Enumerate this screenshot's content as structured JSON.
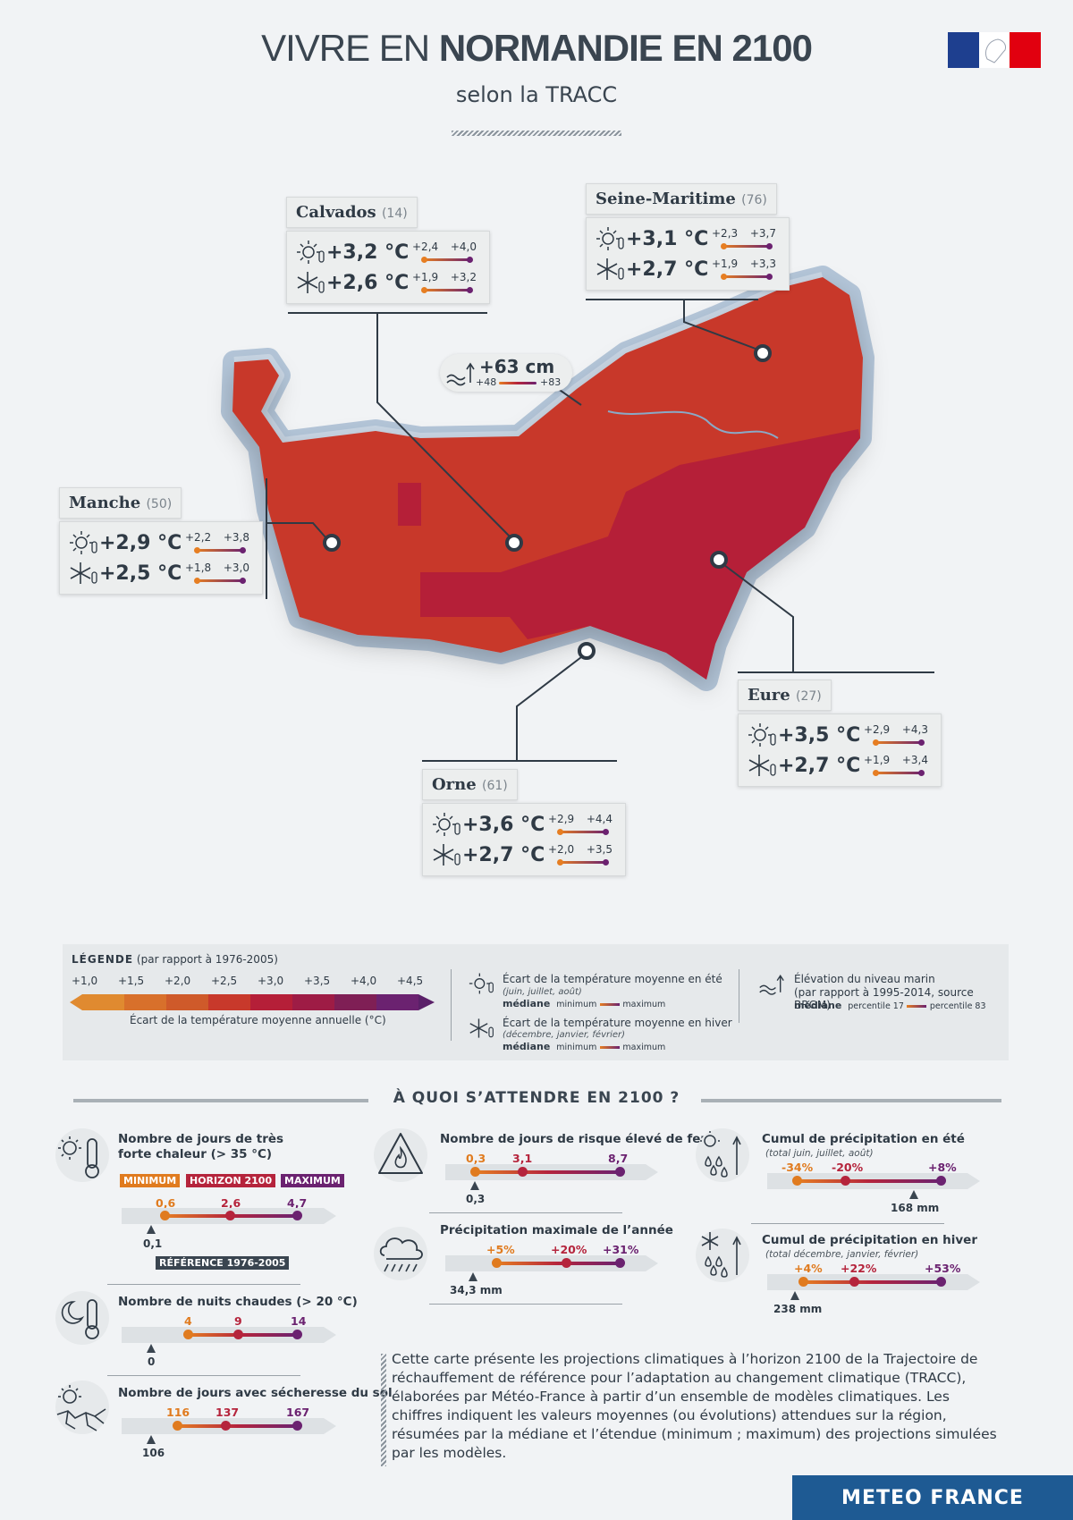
{
  "header": {
    "title_thin": "VIVRE EN",
    "title_bold": "NORMANDIE EN 2100",
    "subtitle": "selon la TRACC"
  },
  "colors": {
    "orange": "#e07b1f",
    "red": "#b5243c",
    "purple": "#6b2270",
    "map_light": "#c8392b",
    "map_dark": "#b51f38",
    "navy": "#1e5a93"
  },
  "departments": [
    {
      "name": "Calvados",
      "code": "(14)",
      "summer": "+3,2 °C",
      "summer_min": "+2,4",
      "summer_max": "+4,0",
      "winter": "+2,6 °C",
      "winter_min": "+1,9",
      "winter_max": "+3,2"
    },
    {
      "name": "Seine-Maritime",
      "code": "(76)",
      "summer": "+3,1 °C",
      "summer_min": "+2,3",
      "summer_max": "+3,7",
      "winter": "+2,7 °C",
      "winter_min": "+1,9",
      "winter_max": "+3,3"
    },
    {
      "name": "Manche",
      "code": "(50)",
      "summer": "+2,9 °C",
      "summer_min": "+2,2",
      "summer_max": "+3,8",
      "winter": "+2,5 °C",
      "winter_min": "+1,8",
      "winter_max": "+3,0"
    },
    {
      "name": "Eure",
      "code": "(27)",
      "summer": "+3,5 °C",
      "summer_min": "+2,9",
      "summer_max": "+4,3",
      "winter": "+2,7 °C",
      "winter_min": "+1,9",
      "winter_max": "+3,4"
    },
    {
      "name": "Orne",
      "code": "(61)",
      "summer": "+3,6 °C",
      "summer_min": "+2,9",
      "summer_max": "+4,4",
      "winter": "+2,7 °C",
      "winter_min": "+2,0",
      "winter_max": "+3,5"
    }
  ],
  "sea_level": {
    "value": "+63 cm",
    "min": "+48",
    "max": "+83"
  },
  "legend": {
    "title": "LÉGENDE",
    "title_note": "(par rapport à 1976-2005)",
    "scale": [
      "+1,0",
      "+1,5",
      "+2,0",
      "+2,5",
      "+3,0",
      "+3,5",
      "+4,0",
      "+4,5"
    ],
    "scale_caption": "Écart de la température moyenne annuelle (°C)",
    "summer_title": "Écart de la température moyenne en été",
    "summer_months": "(juin, juillet, août)",
    "winter_title": "Écart de la température moyenne en hiver",
    "winter_months": "(décembre, janvier, février)",
    "mediane": "médiane",
    "minimum": "minimum",
    "maximum": "maximum",
    "sea_title": "Élévation du niveau marin",
    "sea_note": "(par rapport à 1995-2014, source BRGM)",
    "p17": "percentile 17",
    "p83": "percentile 83"
  },
  "section_title": "À QUOI S’ATTENDRE EN 2100 ?",
  "indicators": {
    "hot_days": {
      "title1": "Nombre de jours de très",
      "title2": "forte chaleur (> 35 °C)",
      "min": "0,6",
      "med": "2,6",
      "max": "4,7",
      "ref": "0,1",
      "lab_min": "MINIMUM",
      "lab_med": "HORIZON 2100",
      "lab_max": "MAXIMUM",
      "lab_ref": "RÉFÉRENCE 1976-2005"
    },
    "warm_nights": {
      "title": "Nombre de nuits chaudes (> 20 °C)",
      "min": "4",
      "med": "9",
      "max": "14",
      "ref": "0"
    },
    "drought": {
      "title": "Nombre de jours avec sécheresse du sol",
      "min": "116",
      "med": "137",
      "max": "167",
      "ref": "106"
    },
    "fire": {
      "title": "Nombre de jours de risque élevé de feux",
      "min": "0,3",
      "med": "3,1",
      "max": "8,7",
      "ref": "0,3"
    },
    "max_precip": {
      "title": "Précipitation maximale de l’année",
      "min": "+5%",
      "med": "+20%",
      "max": "+31%",
      "ref": "34,3 mm"
    },
    "summer_precip": {
      "title": "Cumul de précipitation en été",
      "sub": "(total juin, juillet, août)",
      "min": "-34%",
      "med": "-20%",
      "max": "+8%",
      "ref": "168 mm"
    },
    "winter_precip": {
      "title": "Cumul de précipitation en hiver",
      "sub": "(total décembre, janvier, février)",
      "min": "+4%",
      "med": "+22%",
      "max": "+53%",
      "ref": "238 mm"
    }
  },
  "description": "Cette carte présente les projections climatiques à l’horizon 2100 de la Trajectoire de réchauffement de référence pour l’adaptation au changement climatique (TRACC), élaborées par Météo-France à partir d’un ensemble de modèles climatiques. Les chiffres indiquent les valeurs moyennes (ou évolutions) attendues sur la région, résumées par la médiane et l’étendue (minimum ; maximum) des projections simulées par les modèles.",
  "brand": "METEO FRANCE"
}
